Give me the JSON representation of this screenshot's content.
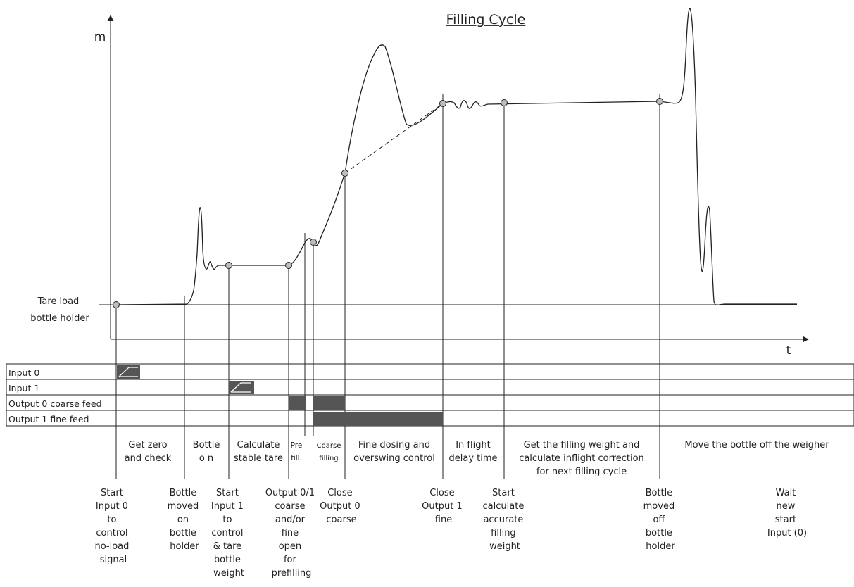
{
  "title": "Filling Cycle",
  "axes": {
    "y_label": "m",
    "x_label": "t"
  },
  "tare_label": [
    "Tare load",
    "bottle holder"
  ],
  "signals": [
    "Input 0",
    "Input 1",
    "Output 0 coarse feed",
    "Output 1 fine feed"
  ],
  "phases": [
    {
      "id": "zero",
      "lines": [
        "Get zero",
        "and check"
      ]
    },
    {
      "id": "bottle-on",
      "lines": [
        "Bottle",
        "o n"
      ]
    },
    {
      "id": "tare",
      "lines": [
        "Calculate",
        "stable tare"
      ]
    },
    {
      "id": "prefill",
      "lines": [
        "Pre",
        "fill."
      ]
    },
    {
      "id": "coarse",
      "lines": [
        "Coarse",
        "filling"
      ]
    },
    {
      "id": "fine",
      "lines": [
        "Fine dosing and",
        "overswing control"
      ]
    },
    {
      "id": "inflight",
      "lines": [
        "In flight",
        "delay time"
      ]
    },
    {
      "id": "weight",
      "lines": [
        "Get the filling weight and",
        "calculate inflight correction",
        "for next filling cycle"
      ]
    },
    {
      "id": "move-off",
      "lines": [
        "Move the bottle off the weigher"
      ]
    }
  ],
  "events": [
    {
      "id": "start-input0",
      "lines": [
        "Start",
        "Input 0",
        "to",
        "control",
        "no-load",
        "signal"
      ]
    },
    {
      "id": "bottle-moved-on",
      "lines": [
        "Bottle",
        "moved",
        "on",
        "bottle",
        "holder"
      ]
    },
    {
      "id": "start-input1",
      "lines": [
        "Start",
        "Input 1",
        "to",
        "control",
        "& tare",
        "bottle",
        "weight"
      ]
    },
    {
      "id": "output-open",
      "lines": [
        "Output 0/1",
        "coarse",
        "and/or",
        "fine",
        "open",
        "for",
        "prefilling"
      ]
    },
    {
      "id": "close-output0",
      "lines": [
        "Close",
        "Output 0",
        "coarse"
      ]
    },
    {
      "id": "close-output1",
      "lines": [
        "Close",
        "Output 1",
        "fine"
      ]
    },
    {
      "id": "start-calc",
      "lines": [
        "Start",
        "calculate",
        "accurate",
        "filling",
        "weight"
      ]
    },
    {
      "id": "bottle-moved-off",
      "lines": [
        "Bottle",
        "moved",
        "off",
        "bottle",
        "holder"
      ]
    },
    {
      "id": "wait-start",
      "lines": [
        "Wait",
        "new",
        "start",
        "Input (0)"
      ]
    }
  ]
}
